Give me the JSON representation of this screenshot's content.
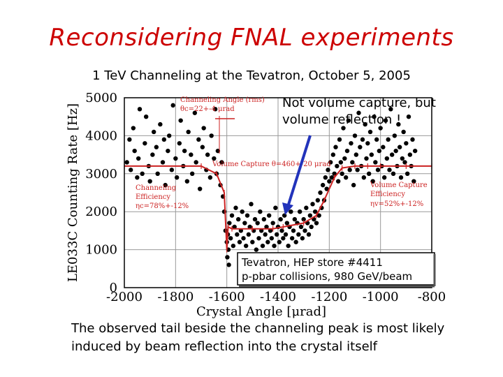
{
  "slide": {
    "title": "Reconsidering FNAL experiments",
    "subtitle": "1 TeV Channeling at the Tevatron, October 5, 2005",
    "annotation": "Not volume capture, but volume reflection !",
    "caption": "The observed tail beside the channeling peak is most likely induced by beam reflection into the crystal itself"
  },
  "colors": {
    "title": "#cc0000",
    "fit_line": "#cc2222",
    "points": "#000000",
    "arrow": "#2233bb"
  },
  "chart_data": {
    "type": "scatter",
    "xlabel": "Crystal Angle [μrad]",
    "ylabel": "LE033C  Counting Rate [Hz]",
    "xlim": [
      -2000,
      -800
    ],
    "ylim": [
      0,
      5000
    ],
    "x_ticks": [
      "-2000",
      "-1800",
      "-1600",
      "-1400",
      "-1200",
      "-1000",
      "-800"
    ],
    "y_ticks": [
      "0",
      "1000",
      "2000",
      "3000",
      "4000",
      "5000"
    ],
    "grid": true,
    "annotations": {
      "channeling_angle": "Channeling Angle (rms)",
      "channeling_angle_value": "θc=22+-4 μrad",
      "volume_capture": "Volume Capture θ=460+-20 μrad",
      "channeling_eff_1": "Channeling",
      "channeling_eff_2": "Efficiency",
      "channeling_eff_3": "ηc=78%+-12%",
      "vc_eff_1": "Volume Capture",
      "vc_eff_2": "Efficiency",
      "vc_eff_3": "ηv=52%+-12%",
      "box_line1": "Tevatron, HEP store #4411",
      "box_line2": "p-pbar collisions, 980 GeV/beam"
    },
    "fit_curve": {
      "x": [
        -2000,
        -1700,
        -1640,
        -1610,
        -1600,
        -1595,
        -1580,
        -1500,
        -1420,
        -1380,
        -1300,
        -1250,
        -1220,
        -1180,
        -1150,
        -1100,
        -1050,
        -1000,
        -900,
        -800
      ],
      "y": [
        3200,
        3200,
        3000,
        2500,
        1000,
        1600,
        1550,
        1550,
        1550,
        1600,
        1700,
        1900,
        2300,
        2900,
        3150,
        3200,
        3200,
        3200,
        3200,
        3200
      ]
    },
    "series": [
      {
        "points": [
          [
            -1990,
            3300
          ],
          [
            -1980,
            3900
          ],
          [
            -1975,
            3100
          ],
          [
            -1965,
            4200
          ],
          [
            -1960,
            3600
          ],
          [
            -1950,
            2900
          ],
          [
            -1945,
            3400
          ],
          [
            -1940,
            4700
          ],
          [
            -1930,
            3000
          ],
          [
            -1920,
            3800
          ],
          [
            -1915,
            4500
          ],
          [
            -1905,
            3200
          ],
          [
            -1900,
            2800
          ],
          [
            -1890,
            3500
          ],
          [
            -1885,
            4100
          ],
          [
            -1875,
            3700
          ],
          [
            -1870,
            3000
          ],
          [
            -1860,
            4300
          ],
          [
            -1850,
            3300
          ],
          [
            -1845,
            3900
          ],
          [
            -1840,
            2700
          ],
          [
            -1830,
            3600
          ],
          [
            -1825,
            4000
          ],
          [
            -1815,
            3100
          ],
          [
            -1810,
            4800
          ],
          [
            -1800,
            3400
          ],
          [
            -1795,
            2900
          ],
          [
            -1785,
            3800
          ],
          [
            -1780,
            4400
          ],
          [
            -1770,
            3200
          ],
          [
            -1765,
            3600
          ],
          [
            -1755,
            2800
          ],
          [
            -1750,
            4100
          ],
          [
            -1740,
            3500
          ],
          [
            -1735,
            3000
          ],
          [
            -1725,
            4600
          ],
          [
            -1720,
            3300
          ],
          [
            -1710,
            3900
          ],
          [
            -1705,
            2600
          ],
          [
            -1695,
            3700
          ],
          [
            -1690,
            4200
          ],
          [
            -1680,
            3100
          ],
          [
            -1675,
            3500
          ],
          [
            -1665,
            2900
          ],
          [
            -1660,
            4000
          ],
          [
            -1650,
            3400
          ],
          [
            -1645,
            4700
          ],
          [
            -1640,
            3000
          ],
          [
            -1635,
            3600
          ],
          [
            -1625,
            2700
          ],
          [
            -1620,
            3300
          ],
          [
            -1615,
            2400
          ],
          [
            -1610,
            2000
          ],
          [
            -1605,
            1500
          ],
          [
            -1600,
            1200
          ],
          [
            -1598,
            800
          ],
          [
            -1596,
            1400
          ],
          [
            -1594,
            1000
          ],
          [
            -1592,
            600
          ],
          [
            -1590,
            1700
          ],
          [
            -1585,
            1300
          ],
          [
            -1580,
            1900
          ],
          [
            -1575,
            1100
          ],
          [
            -1570,
            1600
          ],
          [
            -1565,
            2100
          ],
          [
            -1560,
            1400
          ],
          [
            -1555,
            1800
          ],
          [
            -1550,
            1200
          ],
          [
            -1545,
            1500
          ],
          [
            -1540,
            2000
          ],
          [
            -1535,
            1300
          ],
          [
            -1530,
            1700
          ],
          [
            -1525,
            1100
          ],
          [
            -1520,
            1900
          ],
          [
            -1515,
            1400
          ],
          [
            -1510,
            1600
          ],
          [
            -1505,
            2200
          ],
          [
            -1500,
            1200
          ],
          [
            -1495,
            1500
          ],
          [
            -1490,
            1800
          ],
          [
            -1485,
            1000
          ],
          [
            -1480,
            1700
          ],
          [
            -1475,
            1300
          ],
          [
            -1470,
            2000
          ],
          [
            -1465,
            1500
          ],
          [
            -1460,
            1100
          ],
          [
            -1455,
            1800
          ],
          [
            -1450,
            1400
          ],
          [
            -1445,
            1600
          ],
          [
            -1440,
            1200
          ],
          [
            -1435,
            1900
          ],
          [
            -1430,
            1500
          ],
          [
            -1425,
            1300
          ],
          [
            -1420,
            1700
          ],
          [
            -1415,
            1100
          ],
          [
            -1410,
            2100
          ],
          [
            -1405,
            1400
          ],
          [
            -1400,
            1600
          ],
          [
            -1395,
            1200
          ],
          [
            -1390,
            1800
          ],
          [
            -1385,
            1500
          ],
          [
            -1380,
            1300
          ],
          [
            -1375,
            1900
          ],
          [
            -1370,
            1400
          ],
          [
            -1365,
            1700
          ],
          [
            -1360,
            1100
          ],
          [
            -1355,
            1600
          ],
          [
            -1350,
            2000
          ],
          [
            -1345,
            1300
          ],
          [
            -1340,
            1500
          ],
          [
            -1335,
            1800
          ],
          [
            -1330,
            1200
          ],
          [
            -1325,
            1700
          ],
          [
            -1320,
            1400
          ],
          [
            -1315,
            2000
          ],
          [
            -1310,
            1600
          ],
          [
            -1305,
            1300
          ],
          [
            -1300,
            1800
          ],
          [
            -1295,
            1500
          ],
          [
            -1290,
            2100
          ],
          [
            -1285,
            1700
          ],
          [
            -1280,
            1400
          ],
          [
            -1275,
            1900
          ],
          [
            -1270,
            1600
          ],
          [
            -1265,
            2200
          ],
          [
            -1260,
            1800
          ],
          [
            -1255,
            2000
          ],
          [
            -1250,
            1700
          ],
          [
            -1245,
            2300
          ],
          [
            -1240,
            1900
          ],
          [
            -1235,
            2500
          ],
          [
            -1230,
            2100
          ],
          [
            -1225,
            2700
          ],
          [
            -1220,
            2300
          ],
          [
            -1215,
            2900
          ],
          [
            -1210,
            2600
          ],
          [
            -1205,
            3100
          ],
          [
            -1200,
            2800
          ],
          [
            -1195,
            3300
          ],
          [
            -1190,
            2900
          ],
          [
            -1185,
            3500
          ],
          [
            -1180,
            3000
          ],
          [
            -1175,
            3700
          ],
          [
            -1170,
            3200
          ],
          [
            -1165,
            2800
          ],
          [
            -1160,
            3900
          ],
          [
            -1155,
            3300
          ],
          [
            -1150,
            3000
          ],
          [
            -1145,
            4200
          ],
          [
            -1140,
            3400
          ],
          [
            -1135,
            2900
          ],
          [
            -1130,
            3600
          ],
          [
            -1125,
            4400
          ],
          [
            -1120,
            3100
          ],
          [
            -1115,
            3800
          ],
          [
            -1110,
            3300
          ],
          [
            -1105,
            2700
          ],
          [
            -1100,
            4000
          ],
          [
            -1095,
            3500
          ],
          [
            -1090,
            3100
          ],
          [
            -1085,
            4600
          ],
          [
            -1080,
            3700
          ],
          [
            -1075,
            3200
          ],
          [
            -1070,
            3900
          ],
          [
            -1065,
            2900
          ],
          [
            -1060,
            4300
          ],
          [
            -1055,
            3400
          ],
          [
            -1050,
            3800
          ],
          [
            -1045,
            3000
          ],
          [
            -1040,
            4100
          ],
          [
            -1035,
            3500
          ],
          [
            -1030,
            2800
          ],
          [
            -1025,
            4500
          ],
          [
            -1020,
            3300
          ],
          [
            -1015,
            3900
          ],
          [
            -1010,
            3100
          ],
          [
            -1005,
            3600
          ],
          [
            -1000,
            4200
          ],
          [
            -995,
            3200
          ],
          [
            -990,
            3700
          ],
          [
            -985,
            2900
          ],
          [
            -980,
            4400
          ],
          [
            -975,
            3400
          ],
          [
            -970,
            3900
          ],
          [
            -965,
            3100
          ],
          [
            -960,
            4700
          ],
          [
            -955,
            3500
          ],
          [
            -950,
            3000
          ],
          [
            -945,
            4000
          ],
          [
            -940,
            3600
          ],
          [
            -935,
            3200
          ],
          [
            -930,
            4300
          ],
          [
            -925,
            3700
          ],
          [
            -920,
            2900
          ],
          [
            -915,
            3400
          ],
          [
            -910,
            4100
          ],
          [
            -905,
            3300
          ],
          [
            -900,
            3800
          ],
          [
            -895,
            3000
          ],
          [
            -890,
            4500
          ],
          [
            -885,
            3500
          ],
          [
            -880,
            3200
          ],
          [
            -875,
            3900
          ],
          [
            -870,
            2800
          ],
          [
            -865,
            3600
          ]
        ]
      }
    ]
  }
}
